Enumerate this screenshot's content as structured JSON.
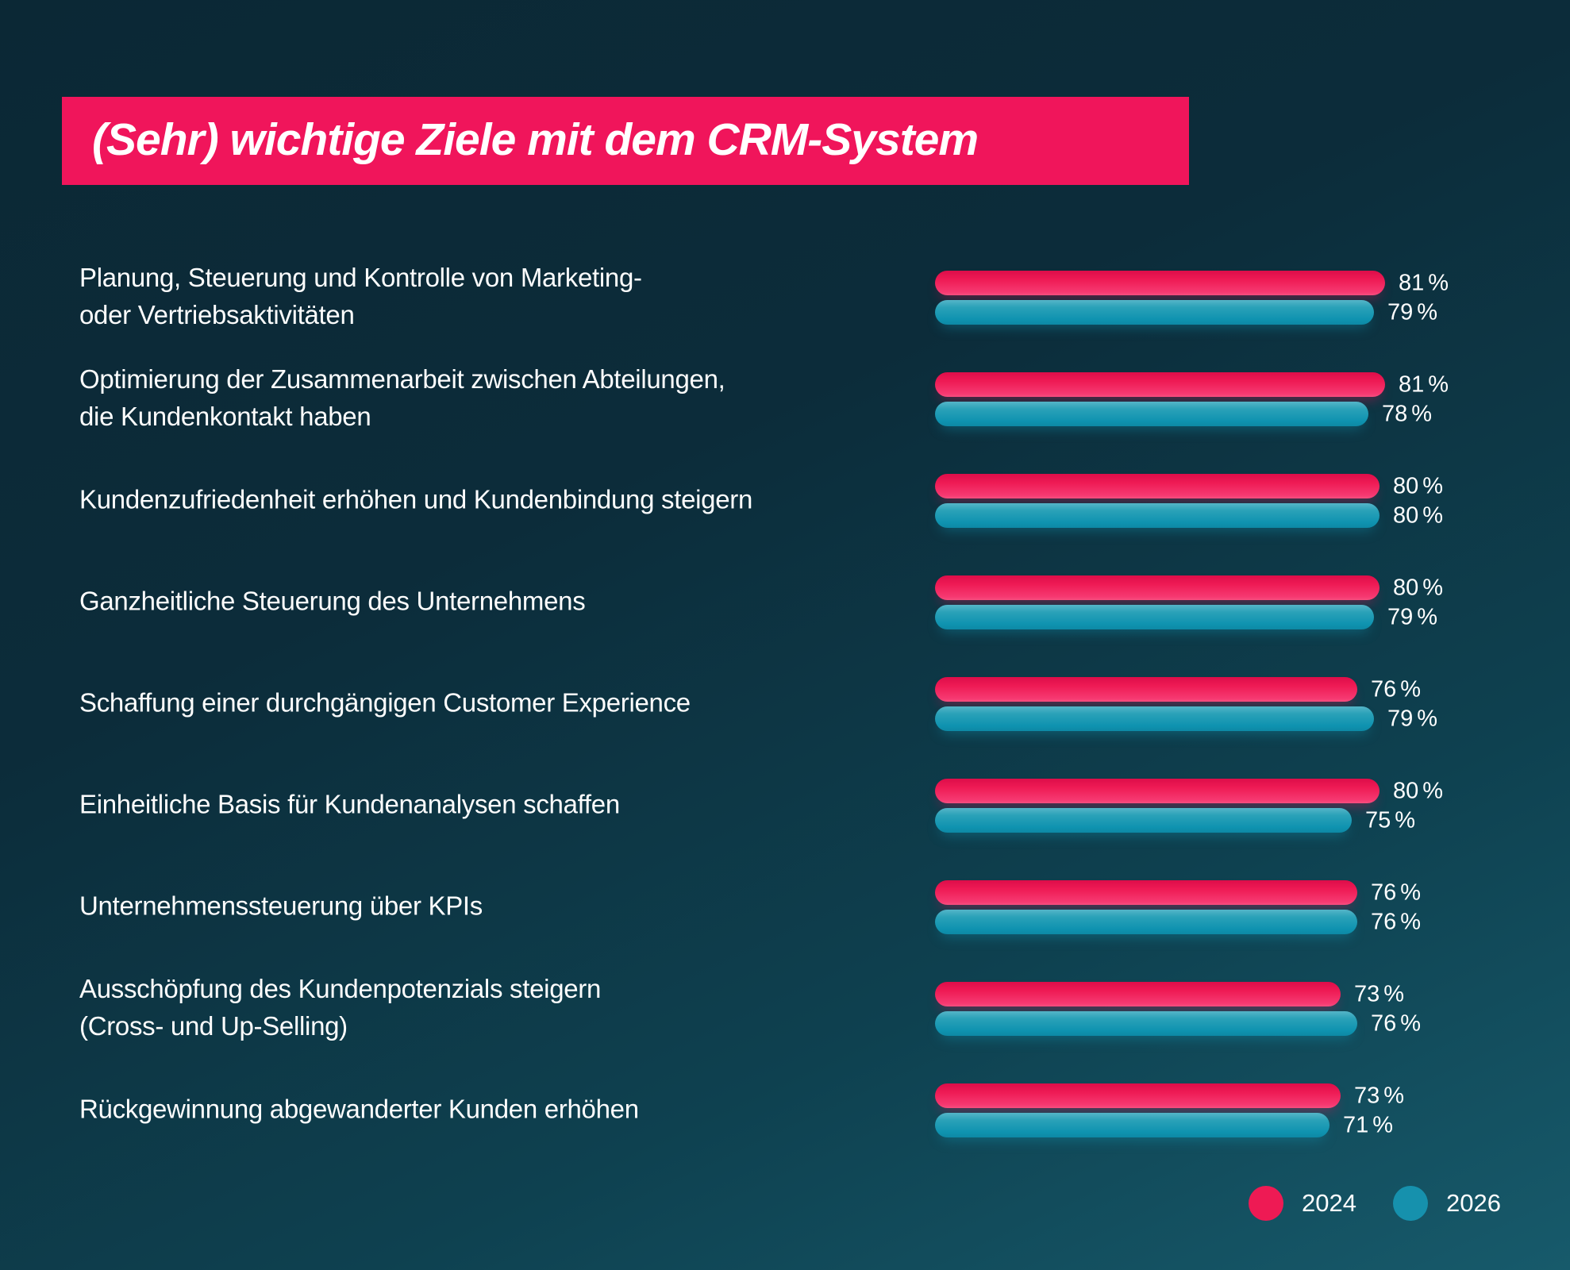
{
  "title": "(Sehr) wichtige Ziele mit dem CRM-System",
  "colors": {
    "background_top": "#0b2835",
    "background_bottom": "#175a6b",
    "banner_pink": "#f0155b",
    "bar_2024_pink": "#ee1a54",
    "bar_2026_teal": "#0f93b0",
    "text": "#ffffff"
  },
  "legend": [
    {
      "label": "2024",
      "color": "#ee1a54"
    },
    {
      "label": "2026",
      "color": "#1691ad"
    }
  ],
  "unit": "%",
  "chart_data": {
    "type": "bar",
    "orientation": "horizontal",
    "title": "(Sehr) wichtige Ziele mit dem CRM-System",
    "xlabel": "",
    "ylabel": "",
    "xlim": [
      0,
      100
    ],
    "unit": "%",
    "grid": false,
    "legend_position": "bottom-right",
    "categories": [
      "Planung, Steuerung und Kontrolle von Marketing-\noder Vertriebsaktivitäten",
      "Optimierung der Zusammenarbeit zwischen Abteilungen,\ndie Kundenkontakt haben",
      "Kundenzufriedenheit erhöhen und Kundenbindung steigern",
      "Ganzheitliche Steuerung des Unternehmens",
      "Schaffung einer durchgängigen Customer Experience",
      "Einheitliche Basis für Kundenanalysen schaffen",
      "Unternehmenssteuerung über KPIs",
      "Ausschöpfung des Kundenpotenzials steigern\n(Cross- und Up-Selling)",
      "Rückgewinnung abgewanderter Kunden erhöhen"
    ],
    "series": [
      {
        "name": "2024",
        "color": "#ee1a54",
        "values": [
          81,
          81,
          80,
          80,
          76,
          80,
          76,
          73,
          73
        ]
      },
      {
        "name": "2026",
        "color": "#0f93b0",
        "values": [
          79,
          78,
          80,
          79,
          79,
          75,
          76,
          76,
          71
        ]
      }
    ]
  }
}
